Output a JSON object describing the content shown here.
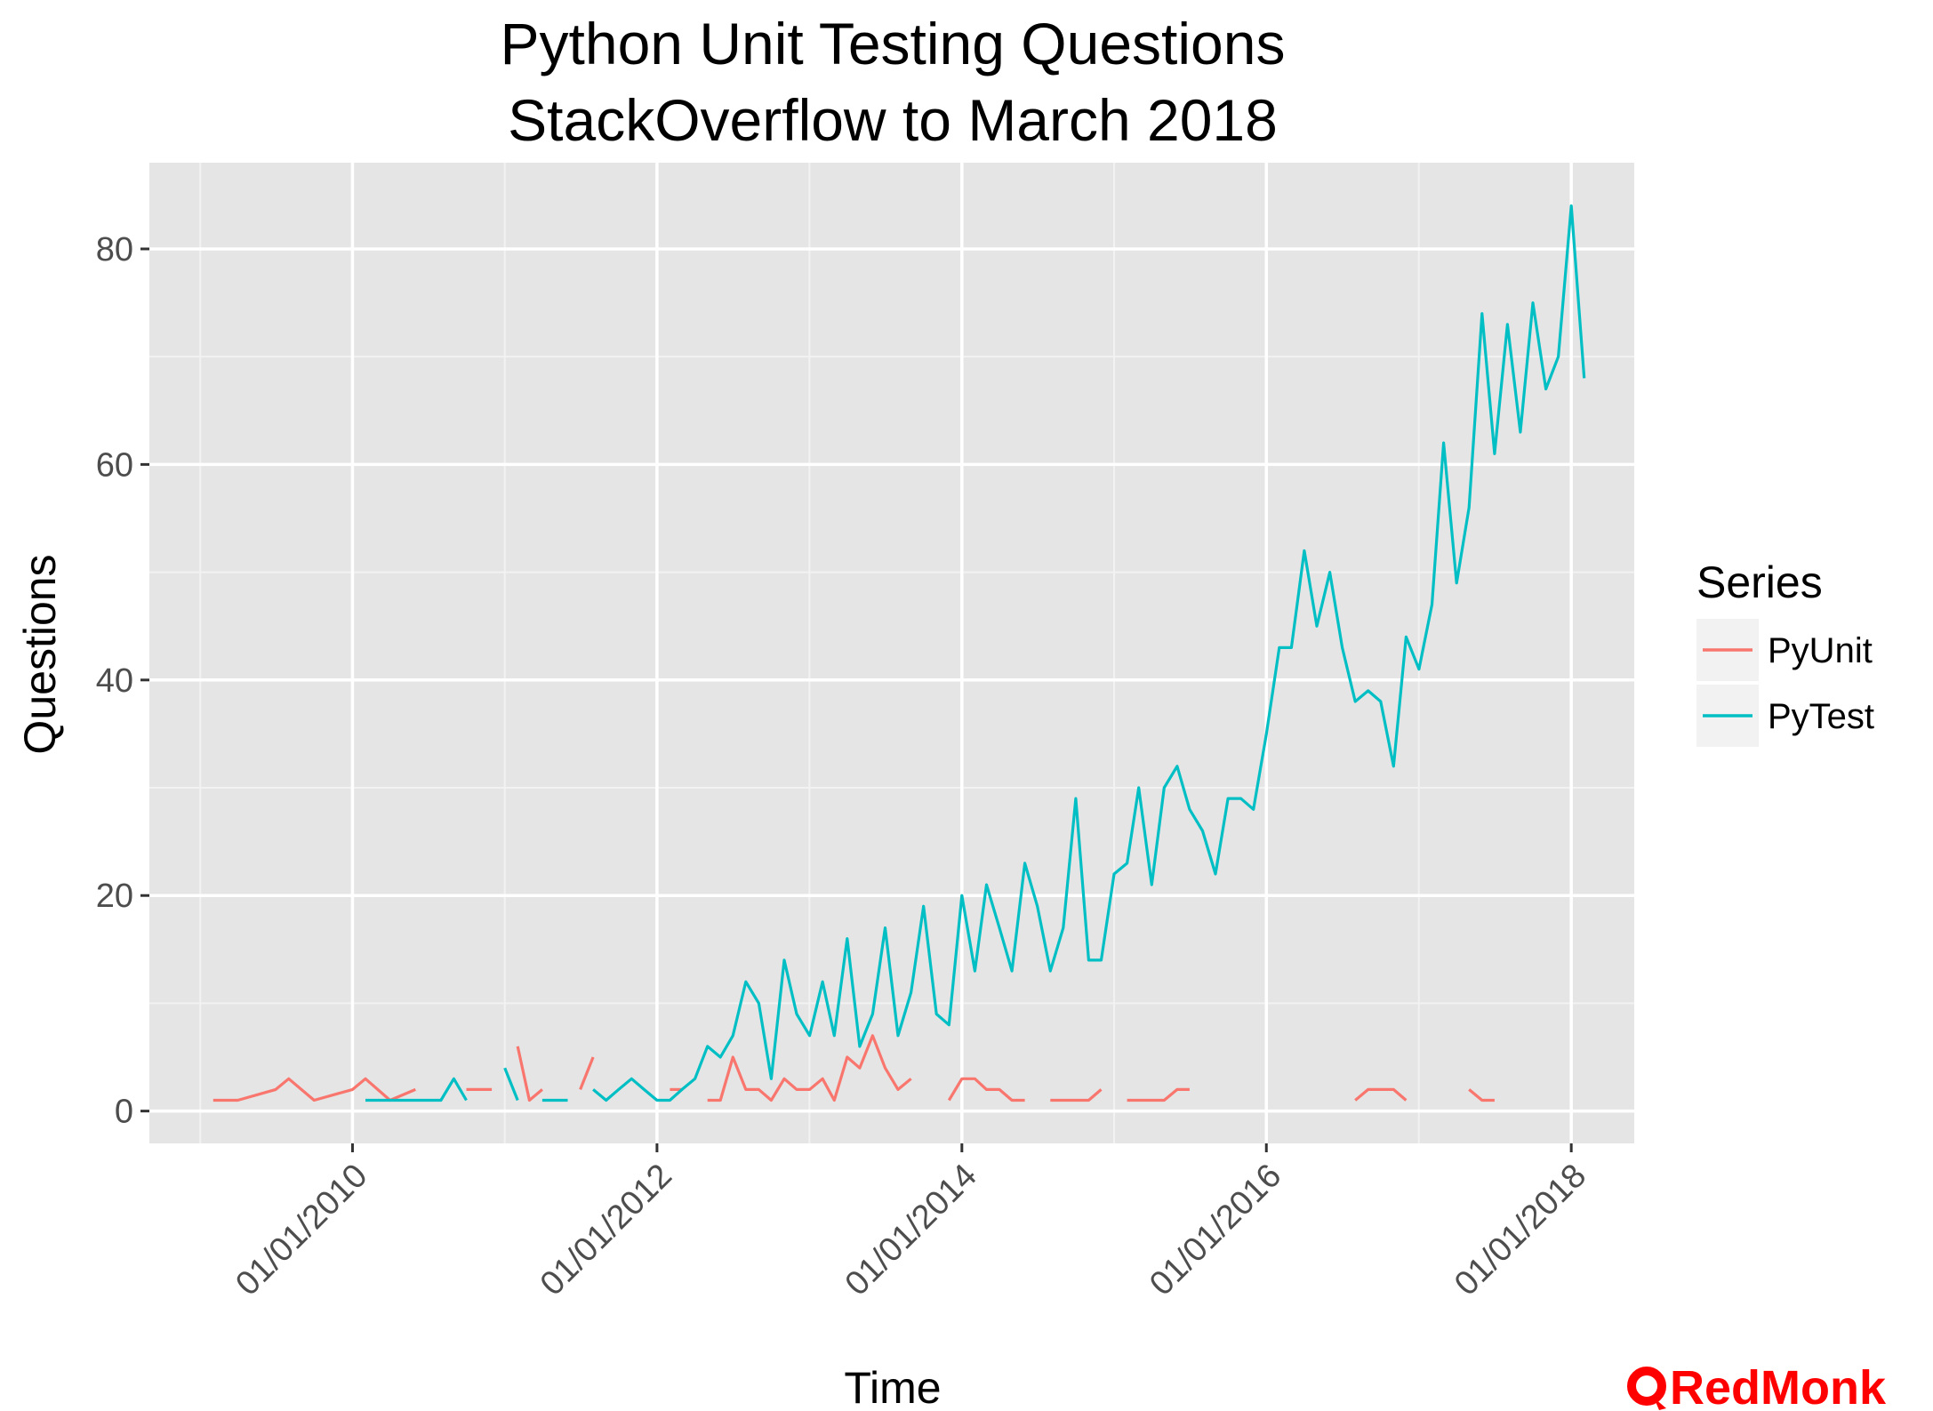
{
  "chart_data": {
    "type": "line",
    "title": "Python Unit Testing Questions",
    "subtitle": "StackOverflow to March 2018",
    "xlabel": "Time",
    "ylabel": "Questions",
    "x_type": "date",
    "xlim": [
      "2008-09-01",
      "2018-06-01"
    ],
    "ylim": [
      -3,
      88
    ],
    "x_ticks": [
      {
        "date": "2010-01-01",
        "label": "01/01/2010"
      },
      {
        "date": "2012-01-01",
        "label": "01/01/2012"
      },
      {
        "date": "2014-01-01",
        "label": "01/01/2014"
      },
      {
        "date": "2016-01-01",
        "label": "01/01/2016"
      },
      {
        "date": "2018-01-01",
        "label": "01/01/2018"
      }
    ],
    "y_ticks": [
      0,
      20,
      40,
      60,
      80
    ],
    "grid": true,
    "legend": {
      "title": "Series",
      "position": "right"
    },
    "series": [
      {
        "name": "PyUnit",
        "color": "#f8766d",
        "points": [
          [
            "2009-02-01",
            1
          ],
          [
            "2009-04-01",
            1
          ],
          [
            "2009-07-01",
            2
          ],
          [
            "2009-08-01",
            3
          ],
          [
            "2009-10-01",
            1
          ],
          [
            "2010-01-01",
            2
          ],
          [
            "2010-02-01",
            3
          ],
          [
            "2010-04-01",
            1
          ],
          [
            "2010-06-01",
            2
          ],
          null,
          [
            "2010-10-01",
            2
          ],
          [
            "2010-12-01",
            2
          ],
          null,
          [
            "2011-02-01",
            6
          ],
          [
            "2011-03-01",
            1
          ],
          [
            "2011-04-01",
            2
          ],
          null,
          [
            "2011-07-01",
            2
          ],
          [
            "2011-08-01",
            5
          ],
          null,
          [
            "2012-02-01",
            2
          ],
          [
            "2012-03-01",
            2
          ],
          null,
          [
            "2012-05-01",
            1
          ],
          [
            "2012-06-01",
            1
          ],
          [
            "2012-07-01",
            5
          ],
          [
            "2012-08-01",
            2
          ],
          [
            "2012-09-01",
            2
          ],
          [
            "2012-10-01",
            1
          ],
          [
            "2012-11-01",
            3
          ],
          [
            "2012-12-01",
            2
          ],
          [
            "2013-01-01",
            2
          ],
          [
            "2013-02-01",
            3
          ],
          [
            "2013-03-01",
            1
          ],
          [
            "2013-04-01",
            5
          ],
          [
            "2013-05-01",
            4
          ],
          [
            "2013-06-01",
            7
          ],
          [
            "2013-07-01",
            4
          ],
          [
            "2013-08-01",
            2
          ],
          [
            "2013-09-01",
            3
          ],
          null,
          [
            "2013-12-01",
            1
          ],
          [
            "2014-01-01",
            3
          ],
          [
            "2014-02-01",
            3
          ],
          [
            "2014-03-01",
            2
          ],
          [
            "2014-04-01",
            2
          ],
          [
            "2014-05-01",
            1
          ],
          [
            "2014-06-01",
            1
          ],
          null,
          [
            "2014-08-01",
            1
          ],
          [
            "2014-09-01",
            1
          ],
          [
            "2014-10-01",
            1
          ],
          [
            "2014-11-01",
            1
          ],
          [
            "2014-12-01",
            2
          ],
          null,
          [
            "2015-02-01",
            1
          ],
          [
            "2015-03-01",
            1
          ],
          [
            "2015-04-01",
            1
          ],
          [
            "2015-05-01",
            1
          ],
          [
            "2015-06-01",
            2
          ],
          [
            "2015-07-01",
            2
          ],
          null,
          [
            "2016-08-01",
            1
          ],
          [
            "2016-09-01",
            2
          ],
          [
            "2016-10-01",
            2
          ],
          [
            "2016-11-01",
            2
          ],
          [
            "2016-12-01",
            1
          ],
          null,
          [
            "2017-05-01",
            2
          ],
          [
            "2017-06-01",
            1
          ],
          [
            "2017-07-01",
            1
          ]
        ]
      },
      {
        "name": "PyTest",
        "color": "#00bfc4",
        "points": [
          [
            "2010-02-01",
            1
          ],
          [
            "2010-03-01",
            1
          ],
          [
            "2010-04-01",
            1
          ],
          [
            "2010-05-01",
            1
          ],
          [
            "2010-06-01",
            1
          ],
          [
            "2010-07-01",
            1
          ],
          [
            "2010-08-01",
            1
          ],
          [
            "2010-09-01",
            3
          ],
          [
            "2010-10-01",
            1
          ],
          null,
          [
            "2011-01-01",
            4
          ],
          [
            "2011-02-01",
            1
          ],
          null,
          [
            "2011-04-01",
            1
          ],
          [
            "2011-05-01",
            1
          ],
          [
            "2011-06-01",
            1
          ],
          null,
          [
            "2011-08-01",
            2
          ],
          [
            "2011-09-01",
            1
          ],
          [
            "2011-10-01",
            2
          ],
          [
            "2011-11-01",
            3
          ],
          [
            "2011-12-01",
            2
          ],
          [
            "2012-01-01",
            1
          ],
          [
            "2012-02-01",
            1
          ],
          [
            "2012-03-01",
            2
          ],
          [
            "2012-04-01",
            3
          ],
          [
            "2012-05-01",
            6
          ],
          [
            "2012-06-01",
            5
          ],
          [
            "2012-07-01",
            7
          ],
          [
            "2012-08-01",
            12
          ],
          [
            "2012-09-01",
            10
          ],
          [
            "2012-10-01",
            3
          ],
          [
            "2012-11-01",
            14
          ],
          [
            "2012-12-01",
            9
          ],
          [
            "2013-01-01",
            7
          ],
          [
            "2013-02-01",
            12
          ],
          [
            "2013-03-01",
            7
          ],
          [
            "2013-04-01",
            16
          ],
          [
            "2013-05-01",
            6
          ],
          [
            "2013-06-01",
            9
          ],
          [
            "2013-07-01",
            17
          ],
          [
            "2013-08-01",
            7
          ],
          [
            "2013-09-01",
            11
          ],
          [
            "2013-10-01",
            19
          ],
          [
            "2013-11-01",
            9
          ],
          [
            "2013-12-01",
            8
          ],
          [
            "2014-01-01",
            20
          ],
          [
            "2014-02-01",
            13
          ],
          [
            "2014-03-01",
            21
          ],
          [
            "2014-04-01",
            17
          ],
          [
            "2014-05-01",
            13
          ],
          [
            "2014-06-01",
            23
          ],
          [
            "2014-07-01",
            19
          ],
          [
            "2014-08-01",
            13
          ],
          [
            "2014-09-01",
            17
          ],
          [
            "2014-10-01",
            29
          ],
          [
            "2014-11-01",
            14
          ],
          [
            "2014-12-01",
            14
          ],
          [
            "2015-01-01",
            22
          ],
          [
            "2015-02-01",
            23
          ],
          [
            "2015-03-01",
            30
          ],
          [
            "2015-04-01",
            21
          ],
          [
            "2015-05-01",
            30
          ],
          [
            "2015-06-01",
            32
          ],
          [
            "2015-07-01",
            28
          ],
          [
            "2015-08-01",
            26
          ],
          [
            "2015-09-01",
            22
          ],
          [
            "2015-10-01",
            29
          ],
          [
            "2015-11-01",
            29
          ],
          [
            "2015-12-01",
            28
          ],
          [
            "2016-01-01",
            35
          ],
          [
            "2016-02-01",
            43
          ],
          [
            "2016-03-01",
            43
          ],
          [
            "2016-04-01",
            52
          ],
          [
            "2016-05-01",
            45
          ],
          [
            "2016-06-01",
            50
          ],
          [
            "2016-07-01",
            43
          ],
          [
            "2016-08-01",
            38
          ],
          [
            "2016-09-01",
            39
          ],
          [
            "2016-10-01",
            38
          ],
          [
            "2016-11-01",
            32
          ],
          [
            "2016-12-01",
            44
          ],
          [
            "2017-01-01",
            41
          ],
          [
            "2017-02-01",
            47
          ],
          [
            "2017-03-01",
            62
          ],
          [
            "2017-04-01",
            49
          ],
          [
            "2017-05-01",
            56
          ],
          [
            "2017-06-01",
            74
          ],
          [
            "2017-07-01",
            61
          ],
          [
            "2017-08-01",
            73
          ],
          [
            "2017-09-01",
            63
          ],
          [
            "2017-10-01",
            75
          ],
          [
            "2017-11-01",
            67
          ],
          [
            "2017-12-01",
            70
          ],
          [
            "2018-01-01",
            84
          ],
          [
            "2018-02-01",
            68
          ]
        ]
      }
    ]
  },
  "watermark": {
    "text": "RedMonk",
    "color": "#ff0000"
  },
  "colors": {
    "panel_background": "#e5e5e5",
    "grid": "#ffffff"
  }
}
